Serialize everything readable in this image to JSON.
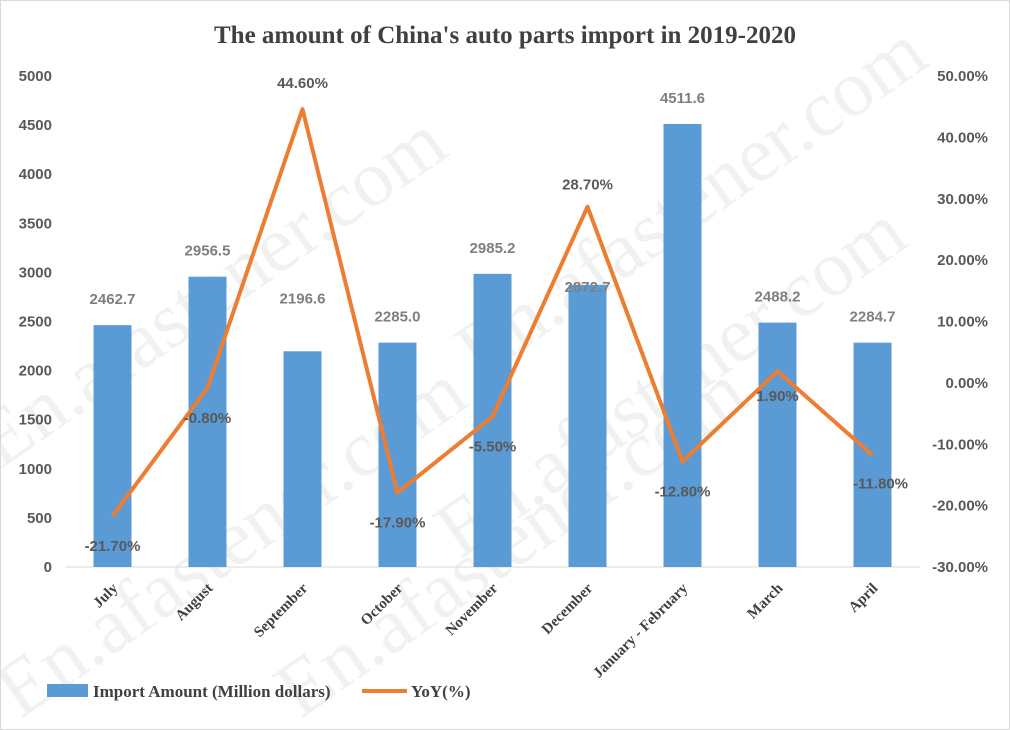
{
  "chart_data": {
    "type": "bar+line",
    "title": "The amount of China's auto parts import in 2019-2020",
    "categories": [
      "July",
      "August",
      "September",
      "October",
      "November",
      "December",
      "January - February",
      "March",
      "April"
    ],
    "series": [
      {
        "name": "Import Amount (Million dollars)",
        "type": "bar",
        "axis": "left",
        "color": "#5b9bd5",
        "values": [
          2462.7,
          2956.5,
          2196.6,
          2285.0,
          2985.2,
          2872.7,
          4511.6,
          2488.2,
          2284.7
        ],
        "labels": [
          "2462.7",
          "2956.5",
          "2196.6",
          "2285.0",
          "2985.2",
          "2872.7",
          "4511.6",
          "2488.2",
          "2284.7"
        ]
      },
      {
        "name": "YoY(%)",
        "type": "line",
        "axis": "right",
        "color": "#ed7d31",
        "values": [
          -21.7,
          -0.8,
          44.6,
          -17.9,
          -5.5,
          28.7,
          -12.8,
          1.9,
          -11.8
        ],
        "labels": [
          "-21.70%",
          "-0.80%",
          "44.60%",
          "-17.90%",
          "-5.50%",
          "28.70%",
          "-12.80%",
          "1.90%",
          "-11.80%"
        ]
      }
    ],
    "y_left": {
      "range": [
        0,
        5000
      ],
      "ticks": [
        "0",
        "500",
        "1000",
        "1500",
        "2000",
        "2500",
        "3000",
        "3500",
        "4000",
        "4500",
        "5000"
      ]
    },
    "y_right": {
      "range": [
        -30,
        50
      ],
      "ticks": [
        "-30.00%",
        "-20.00%",
        "-10.00%",
        "0.00%",
        "10.00%",
        "20.00%",
        "30.00%",
        "40.00%",
        "50.00%"
      ]
    },
    "grid": false,
    "legend": "bottom"
  },
  "watermark": "En.afastener.com"
}
